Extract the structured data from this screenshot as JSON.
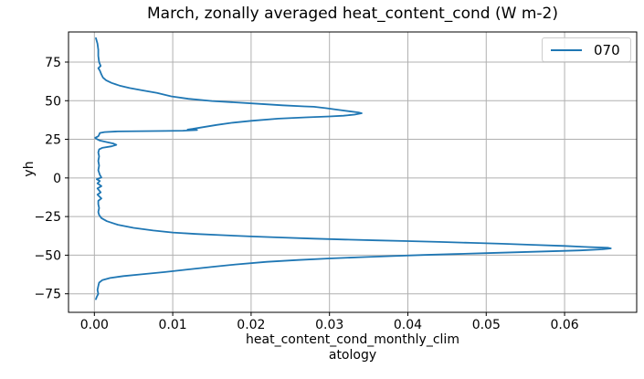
{
  "figure": {
    "xlabel_lines": [
      "heat_content_cond_monthly_clim",
      "atology"
    ]
  },
  "chart_data": {
    "type": "line",
    "title": "March, zonally averaged heat_content_cond (W m-2)",
    "xlabel": "heat_content_cond_monthly_climatology",
    "ylabel": "yh",
    "xlim": [
      -0.0033,
      0.0692
    ],
    "ylim": [
      -87,
      94.5
    ],
    "xticks": [
      0,
      0.01,
      0.02,
      0.03,
      0.04,
      0.05,
      0.06
    ],
    "xtick_labels": [
      "0.00",
      "0.01",
      "0.02",
      "0.03",
      "0.04",
      "0.05",
      "0.06"
    ],
    "yticks": [
      75,
      50,
      25,
      0,
      -25,
      -50,
      -75
    ],
    "ytick_labels": [
      "75",
      "50",
      "25",
      "0",
      "−25",
      "−50",
      "−75"
    ],
    "grid": true,
    "grid_color": "#b0b0b0",
    "spine_color": "#000000",
    "legend_position": "upper right",
    "series": [
      {
        "name": "070",
        "color": "#1f77b4",
        "points_format": "[heat_content_cond_value, yh]",
        "points": [
          [
            0.0002,
            90.5
          ],
          [
            0.0004,
            87
          ],
          [
            0.0005,
            83
          ],
          [
            0.0005,
            79
          ],
          [
            0.0006,
            75
          ],
          [
            0.0008,
            72.5
          ],
          [
            0.0005,
            71
          ],
          [
            0.0007,
            69.5
          ],
          [
            0.0009,
            67
          ],
          [
            0.0011,
            65
          ],
          [
            0.0015,
            63.2
          ],
          [
            0.0022,
            61.5
          ],
          [
            0.0032,
            59.8
          ],
          [
            0.0045,
            58.2
          ],
          [
            0.006,
            56.8
          ],
          [
            0.008,
            55
          ],
          [
            0.0098,
            52.8
          ],
          [
            0.012,
            51.2
          ],
          [
            0.015,
            49.8
          ],
          [
            0.018,
            48.9
          ],
          [
            0.021,
            48
          ],
          [
            0.024,
            47
          ],
          [
            0.0268,
            46.3
          ],
          [
            0.028,
            46.1
          ],
          [
            0.0295,
            45.2
          ],
          [
            0.031,
            44.2
          ],
          [
            0.0325,
            43.2
          ],
          [
            0.0337,
            42.4
          ],
          [
            0.0341,
            41.9
          ],
          [
            0.0332,
            41
          ],
          [
            0.0318,
            40.3
          ],
          [
            0.03,
            39.8
          ],
          [
            0.027,
            39.2
          ],
          [
            0.0235,
            38.4
          ],
          [
            0.02,
            37
          ],
          [
            0.0175,
            35.7
          ],
          [
            0.0156,
            34.3
          ],
          [
            0.0139,
            32.9
          ],
          [
            0.0125,
            31.7
          ],
          [
            0.0119,
            31.3
          ],
          [
            0.0131,
            31
          ],
          [
            0.0113,
            30.6
          ],
          [
            0.009,
            30.4
          ],
          [
            0.006,
            30.3
          ],
          [
            0.003,
            30.1
          ],
          [
            0.0013,
            29.7
          ],
          [
            0.0007,
            29.1
          ],
          [
            0.0006,
            28
          ],
          [
            0.0005,
            27
          ],
          [
            0.0001,
            26
          ],
          [
            0.0003,
            25.2
          ],
          [
            0.0007,
            24.2
          ],
          [
            0.0016,
            23.2
          ],
          [
            0.0024,
            22.3
          ],
          [
            0.0028,
            21.4
          ],
          [
            0.0022,
            20.5
          ],
          [
            0.001,
            19.5
          ],
          [
            0.0006,
            18.5
          ],
          [
            0.0005,
            16.5
          ],
          [
            0.0006,
            14
          ],
          [
            0.0005,
            11
          ],
          [
            0.0006,
            8
          ],
          [
            0.0005,
            5
          ],
          [
            0.0007,
            2
          ],
          [
            0.0009,
            0.3
          ],
          [
            0.0003,
            -0.8
          ],
          [
            0.0007,
            -2
          ],
          [
            0.0004,
            -3.5
          ],
          [
            0.0009,
            -5.3
          ],
          [
            0.0004,
            -6.8
          ],
          [
            0.0008,
            -9.3
          ],
          [
            0.0004,
            -10.8
          ],
          [
            0.0009,
            -13.3
          ],
          [
            0.0005,
            -14.8
          ],
          [
            0.0005,
            -17
          ],
          [
            0.0006,
            -19.5
          ],
          [
            0.0005,
            -22
          ],
          [
            0.0006,
            -24
          ],
          [
            0.0009,
            -26
          ],
          [
            0.0016,
            -28
          ],
          [
            0.003,
            -30.3
          ],
          [
            0.005,
            -32.3
          ],
          [
            0.0075,
            -34
          ],
          [
            0.01,
            -35.3
          ],
          [
            0.013,
            -36.3
          ],
          [
            0.016,
            -37
          ],
          [
            0.02,
            -37.9
          ],
          [
            0.024,
            -38.6
          ],
          [
            0.028,
            -39.3
          ],
          [
            0.032,
            -39.9
          ],
          [
            0.036,
            -40.4
          ],
          [
            0.04,
            -40.9
          ],
          [
            0.044,
            -41.4
          ],
          [
            0.048,
            -42
          ],
          [
            0.052,
            -42.6
          ],
          [
            0.056,
            -43.3
          ],
          [
            0.06,
            -44
          ],
          [
            0.063,
            -44.7
          ],
          [
            0.0655,
            -45.2
          ],
          [
            0.0659,
            -45.6
          ],
          [
            0.0648,
            -46.2
          ],
          [
            0.062,
            -46.9
          ],
          [
            0.058,
            -47.5
          ],
          [
            0.054,
            -48.1
          ],
          [
            0.05,
            -48.7
          ],
          [
            0.046,
            -49.3
          ],
          [
            0.042,
            -49.9
          ],
          [
            0.038,
            -50.6
          ],
          [
            0.034,
            -51.3
          ],
          [
            0.03,
            -52.1
          ],
          [
            0.026,
            -53.1
          ],
          [
            0.022,
            -54.3
          ],
          [
            0.018,
            -56
          ],
          [
            0.0154,
            -57.4
          ],
          [
            0.012,
            -59.2
          ],
          [
            0.009,
            -60.9
          ],
          [
            0.006,
            -62.4
          ],
          [
            0.0037,
            -63.5
          ],
          [
            0.002,
            -64.8
          ],
          [
            0.001,
            -66.2
          ],
          [
            0.0006,
            -67.8
          ],
          [
            0.0005,
            -70
          ],
          [
            0.0004,
            -72.5
          ],
          [
            0.0005,
            -75
          ],
          [
            0.0003,
            -77
          ],
          [
            0.0002,
            -78.5
          ]
        ]
      }
    ]
  }
}
